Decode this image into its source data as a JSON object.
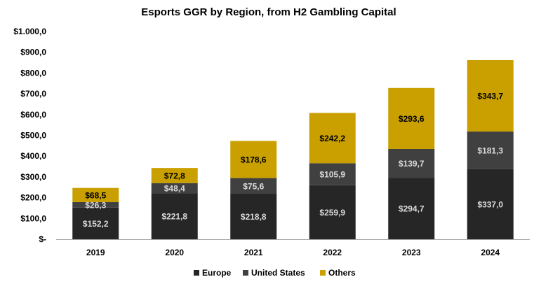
{
  "chart_data": {
    "type": "bar",
    "stacked": true,
    "title": "Esports GGR by Region, from H2 Gambling Capital",
    "categories": [
      "2019",
      "2020",
      "2021",
      "2022",
      "2023",
      "2024"
    ],
    "series": [
      {
        "name": "Europe",
        "color": "#262626",
        "values": [
          152.2,
          221.8,
          218.8,
          259.9,
          294.7,
          337.0
        ],
        "labels": [
          "$152,2",
          "$221,8",
          "$218,8",
          "$259,9",
          "$294,7",
          "$337,0"
        ],
        "label_color": "#d9d9d9"
      },
      {
        "name": "United States",
        "color": "#404040",
        "values": [
          26.3,
          48.4,
          75.6,
          105.9,
          139.7,
          181.3
        ],
        "labels": [
          "$26,3",
          "$48,4",
          "$75,6",
          "$105,9",
          "$139,7",
          "$181,3"
        ],
        "label_color": "#d9d9d9"
      },
      {
        "name": "Others",
        "color": "#c9a000",
        "values": [
          68.5,
          72.8,
          178.6,
          242.2,
          293.6,
          343.7
        ],
        "labels": [
          "$68,5",
          "$72,8",
          "$178,6",
          "$242,2",
          "$293,6",
          "$343,7"
        ],
        "label_color": "#000000"
      }
    ],
    "ylim": [
      0,
      1000
    ],
    "yticks": [
      0,
      100,
      200,
      300,
      400,
      500,
      600,
      700,
      800,
      900,
      1000
    ],
    "ytick_labels": [
      "$-",
      "$100,0",
      "$200,0",
      "$300,0",
      "$400,0",
      "$500,0",
      "$600,0",
      "$700,0",
      "$800,0",
      "$900,0",
      "$1.000,0"
    ],
    "grid": false,
    "legend_position": "bottom",
    "xlabel": "",
    "ylabel": ""
  }
}
